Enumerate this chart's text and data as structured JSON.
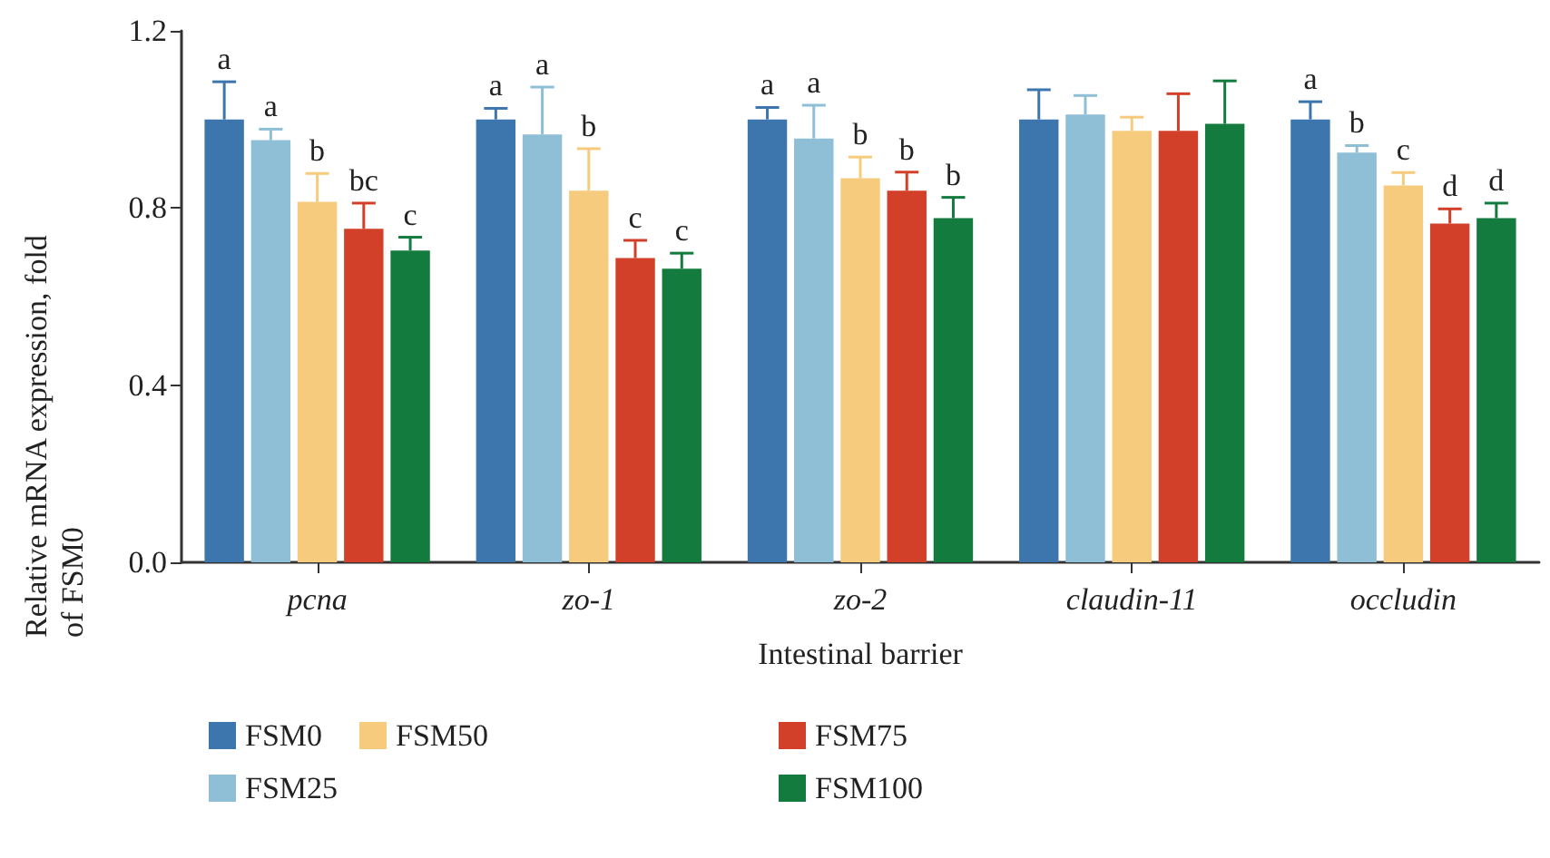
{
  "chart_data": {
    "type": "bar",
    "categories": [
      "pcna",
      "zo-1",
      "zo-2",
      "claudin-11",
      "occludin"
    ],
    "xlabel": "Intestinal barrier",
    "ylabel": "Relative mRNA expression, fold of FSM0",
    "ylim": [
      0,
      1.2
    ],
    "yticks": [
      {
        "value": 0,
        "label": "0.0"
      },
      0.4,
      0.8,
      {
        "value": 1.2,
        "label": "1.2"
      }
    ],
    "grid": false,
    "legend": "bottom",
    "series": [
      {
        "name": "FSM0",
        "color": "#3c76ad",
        "values": [
          1.0,
          1.0,
          1.0,
          1.0,
          1.0
        ],
        "errors": [
          [
            1.0,
            1.085
          ],
          [
            1.0,
            1.025
          ],
          [
            1.0,
            1.027
          ],
          [
            1.0,
            1.067
          ],
          [
            1.0,
            1.04
          ]
        ],
        "value_labels": [
          "a",
          "a",
          "a",
          null,
          "a"
        ]
      },
      {
        "name": "FSM25",
        "color": "#8fbed7",
        "values": [
          0.953,
          0.966,
          0.957,
          1.011,
          0.925
        ],
        "errors": [
          [
            0.953,
            0.978
          ],
          [
            0.966,
            1.073
          ],
          [
            0.957,
            1.032
          ],
          [
            1.011,
            1.054
          ],
          [
            0.925,
            0.941
          ]
        ],
        "value_labels": [
          "a",
          "a",
          "a",
          null,
          "b"
        ]
      },
      {
        "name": "FSM50",
        "color": "#f6cb7e",
        "values": [
          0.814,
          0.839,
          0.867,
          0.974,
          0.851
        ],
        "errors": [
          [
            0.814,
            0.878
          ],
          [
            0.839,
            0.934
          ],
          [
            0.867,
            0.915
          ],
          [
            0.974,
            1.005
          ],
          [
            0.851,
            0.88
          ]
        ],
        "value_labels": [
          "b",
          "b",
          "b",
          null,
          "c"
        ]
      },
      {
        "name": "FSM75",
        "color": "#d2402a",
        "values": [
          0.753,
          0.687,
          0.839,
          0.974,
          0.765
        ],
        "errors": [
          [
            0.753,
            0.811
          ],
          [
            0.687,
            0.727
          ],
          [
            0.839,
            0.881
          ],
          [
            0.974,
            1.058
          ],
          [
            0.765,
            0.798
          ]
        ],
        "value_labels": [
          "bc",
          "c",
          "b",
          null,
          "d"
        ]
      },
      {
        "name": "FSM100",
        "color": "#147b3e",
        "values": [
          0.704,
          0.663,
          0.777,
          0.99,
          0.777
        ],
        "errors": [
          [
            0.704,
            0.734
          ],
          [
            0.663,
            0.698
          ],
          [
            0.777,
            0.824
          ],
          [
            0.99,
            1.087
          ],
          [
            0.777,
            0.811
          ]
        ],
        "value_labels": [
          "c",
          "c",
          "b",
          null,
          "d"
        ]
      }
    ]
  }
}
